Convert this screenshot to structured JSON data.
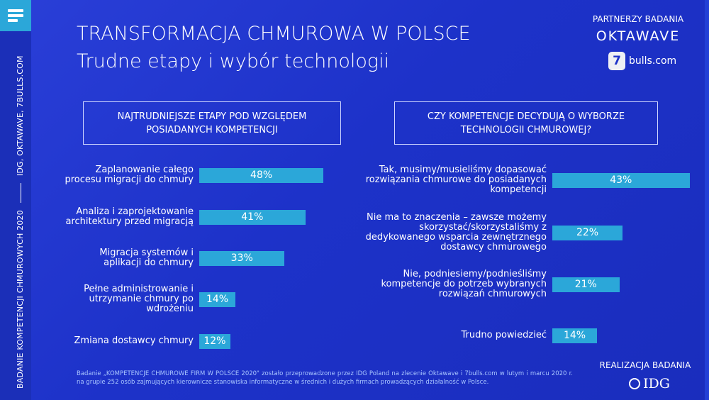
{
  "header": {
    "title": "TRANSFORMACJA CHMUROWA W POLSCE",
    "subtitle": "Trudne etapy i wybór technologii"
  },
  "sidebar": {
    "text_left": "BADANIE KOMPETENCJI CHMUROWYCH  2020",
    "text_right": "IDG, OKTAWAVE, 7BULLS.COM",
    "menu_icon": "hamburger-icon"
  },
  "partners": {
    "label": "PARTNERZY BADANIA",
    "logo1": "OKTAWAVE",
    "logo2_badge": "7",
    "logo2_text": "bulls.com"
  },
  "realization": {
    "label": "REALIZACJA BADANIA",
    "logo": "IDG"
  },
  "footnote": "Badanie „KOMPETENCJE CHMUROWE FIRM W POLSCE 2020\" zostało przeprowadzone przez IDG Poland na zlecenie Oktawave i 7bulls.com w lutym i marcu 2020 r. na grupie 252 osób zajmujących kierownicze stanowiska informatyczne w średnich i dużych firmach prowadzących działalność w Polsce.",
  "colors": {
    "background": "#1d32c9",
    "bar": "#2ba7d9",
    "sidebar": "#1b2fb8"
  },
  "chart_data": [
    {
      "type": "bar",
      "orientation": "horizontal",
      "title": "NAJTRUDNIEJSZE ETAPY POD WZGLĘDEM POSIADANYCH KOMPETENCJI",
      "unit": "%",
      "categories": [
        "Zaplanowanie całego\nprocesu migracji do chmury",
        "Analiza i zaprojektowanie\narchitektury przed migracją",
        "Migracja systemów i\naplikacji do chmury",
        "Pełne administrowanie i\nutrzymanie chmury po\nwdrożeniu",
        "Zmiana dostawcy chmury"
      ],
      "values": [
        48,
        41,
        33,
        14,
        12
      ],
      "labels": [
        "48%",
        "41%",
        "33%",
        "14%",
        "12%"
      ]
    },
    {
      "type": "bar",
      "orientation": "horizontal",
      "title": "CZY KOMPETENCJE DECYDUJĄ O WYBORZE TECHNOLOGII CHMUROWEJ?",
      "unit": "%",
      "categories": [
        "Tak, musimy/musieliśmy dopasować\nrozwiązania chmurowe do posiadanych\nkompetencji",
        "Nie ma to znaczenia – zawsze możemy\nskorzystać/skorzystaliśmy z\ndedykowanego wsparcia zewnętrznego\ndostawcy chmurowego",
        "Nie, podniesiemy/podnieśliśmy\nkompetencje do potrzeb wybranych\nrozwiązań chmurowych",
        "Trudno powiedzieć"
      ],
      "values": [
        43,
        22,
        21,
        14
      ],
      "labels": [
        "43%",
        "22%",
        "21%",
        "14%"
      ]
    }
  ]
}
